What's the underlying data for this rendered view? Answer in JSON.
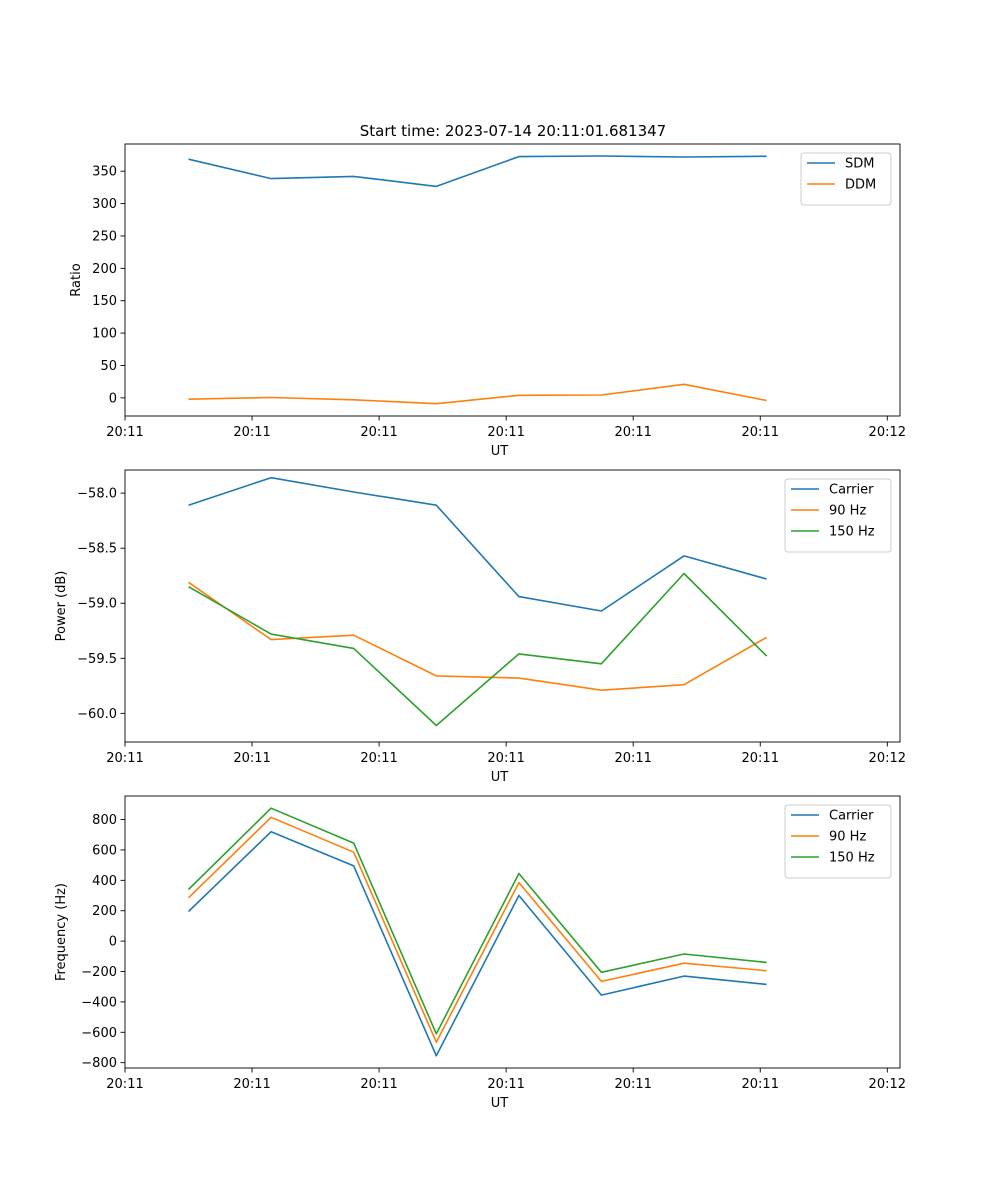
{
  "figure": {
    "title": "Start time: 2023-07-14 20:11:01.681347"
  },
  "chart_data": [
    {
      "type": "line",
      "id": "ratio",
      "xlabel": "UT",
      "ylabel": "Ratio",
      "x_ticks": [
        "20:11",
        "20:11",
        "20:11",
        "20:11",
        "20:11",
        "20:11",
        "20:12"
      ],
      "x_range": [
        0,
        6.1
      ],
      "x": [
        0.5,
        1.15,
        1.8,
        2.45,
        3.1,
        3.75,
        4.4,
        5.05
      ],
      "ylim": [
        -28,
        392
      ],
      "y_ticks": [
        0,
        50,
        100,
        150,
        200,
        250,
        300,
        350
      ],
      "legend": "top-right",
      "series": [
        {
          "name": "SDM",
          "color": "#1f77b4",
          "values": [
            368.5,
            338.5,
            342,
            326.5,
            372.5,
            373.5,
            372,
            373
          ]
        },
        {
          "name": "DDM",
          "color": "#ff7f0e",
          "values": [
            -2,
            0.5,
            -3,
            -9,
            4,
            4.5,
            21,
            -4
          ]
        }
      ]
    },
    {
      "type": "line",
      "id": "power",
      "xlabel": "UT",
      "ylabel": "Power (dB)",
      "x_ticks": [
        "20:11",
        "20:11",
        "20:11",
        "20:11",
        "20:11",
        "20:11",
        "20:12"
      ],
      "x_range": [
        0,
        6.1
      ],
      "x": [
        0.5,
        1.15,
        1.8,
        2.45,
        3.1,
        3.75,
        4.4,
        5.05
      ],
      "ylim": [
        -60.26,
        -57.79
      ],
      "y_ticks": [
        -60.0,
        -59.5,
        -59.0,
        -58.5,
        -58.0
      ],
      "y_tick_labels": [
        "−60.0",
        "−59.5",
        "−59.0",
        "−58.5",
        "−58.0"
      ],
      "legend": "top-right",
      "series": [
        {
          "name": "Carrier",
          "color": "#1f77b4",
          "values": [
            -58.11,
            -57.86,
            -57.99,
            -58.11,
            -58.94,
            -59.07,
            -58.57,
            -58.78
          ]
        },
        {
          "name": "90 Hz",
          "color": "#ff7f0e",
          "values": [
            -58.81,
            -59.33,
            -59.29,
            -59.66,
            -59.68,
            -59.79,
            -59.74,
            -59.31
          ]
        },
        {
          "name": "150 Hz",
          "color": "#2ca02c",
          "values": [
            -58.85,
            -59.28,
            -59.41,
            -60.11,
            -59.46,
            -59.55,
            -58.73,
            -59.48
          ]
        }
      ]
    },
    {
      "type": "line",
      "id": "frequency",
      "xlabel": "UT",
      "ylabel": "Frequency (Hz)",
      "x_ticks": [
        "20:11",
        "20:11",
        "20:11",
        "20:11",
        "20:11",
        "20:11",
        "20:12"
      ],
      "x_range": [
        0,
        6.1
      ],
      "x": [
        0.5,
        1.15,
        1.8,
        2.45,
        3.1,
        3.75,
        4.4,
        5.05
      ],
      "ylim": [
        -835,
        955
      ],
      "y_ticks": [
        -800,
        -600,
        -400,
        -200,
        0,
        200,
        400,
        600,
        800
      ],
      "y_tick_labels": [
        "−800",
        "−600",
        "−400",
        "−200",
        "0",
        "200",
        "400",
        "600",
        "800"
      ],
      "legend": "top-right",
      "series": [
        {
          "name": "Carrier",
          "color": "#1f77b4",
          "values": [
            195,
            720,
            495,
            -755,
            300,
            -355,
            -230,
            -285
          ]
        },
        {
          "name": "90 Hz",
          "color": "#ff7f0e",
          "values": [
            285,
            815,
            585,
            -665,
            385,
            -265,
            -145,
            -195
          ]
        },
        {
          "name": "150 Hz",
          "color": "#2ca02c",
          "values": [
            340,
            875,
            645,
            -610,
            445,
            -205,
            -85,
            -140
          ]
        }
      ]
    }
  ]
}
